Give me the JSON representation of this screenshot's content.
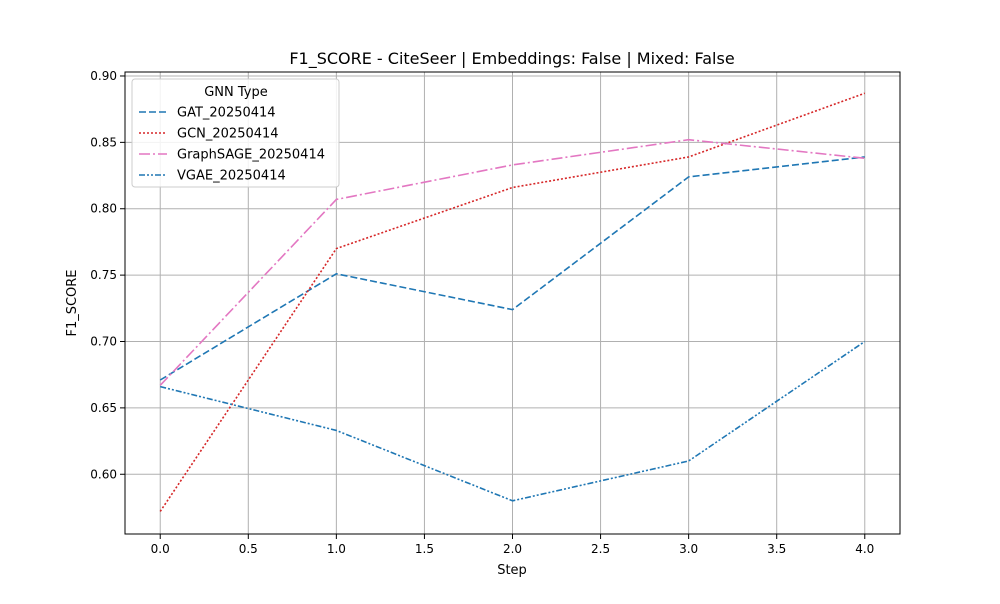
{
  "chart_data": {
    "type": "line",
    "title": "F1_SCORE - CiteSeer | Embeddings: False | Mixed: False",
    "xlabel": "Step",
    "ylabel": "F1_SCORE",
    "xlim": [
      -0.2,
      4.2
    ],
    "ylim": [
      0.555,
      0.903
    ],
    "xticks": [
      0.0,
      0.5,
      1.0,
      1.5,
      2.0,
      2.5,
      3.0,
      3.5,
      4.0
    ],
    "xtick_labels": [
      "0.0",
      "0.5",
      "1.0",
      "1.5",
      "2.0",
      "2.5",
      "3.0",
      "3.5",
      "4.0"
    ],
    "yticks": [
      0.6,
      0.65,
      0.7,
      0.75,
      0.8,
      0.85,
      0.9
    ],
    "ytick_labels": [
      "0.60",
      "0.65",
      "0.70",
      "0.75",
      "0.80",
      "0.85",
      "0.90"
    ],
    "grid": true,
    "legend": {
      "title": "GNN Type",
      "position": "top-left"
    },
    "x": [
      0,
      1,
      2,
      3,
      4
    ],
    "series": [
      {
        "name": "GAT_20250414",
        "color": "#1f77b4",
        "dash": "dashed",
        "values": [
          0.671,
          0.751,
          0.724,
          0.824,
          0.839
        ]
      },
      {
        "name": "GCN_20250414",
        "color": "#d62728",
        "dash": "dotted",
        "values": [
          0.572,
          0.77,
          0.816,
          0.839,
          0.887
        ]
      },
      {
        "name": "GraphSAGE_20250414",
        "color": "#e377c2",
        "dash": "dashdot",
        "values": [
          0.667,
          0.807,
          0.833,
          0.852,
          0.838
        ]
      },
      {
        "name": "VGAE_20250414",
        "color": "#1f77b4",
        "dash": "dashdotdot",
        "values": [
          0.666,
          0.633,
          0.58,
          0.61,
          0.7
        ]
      }
    ]
  }
}
